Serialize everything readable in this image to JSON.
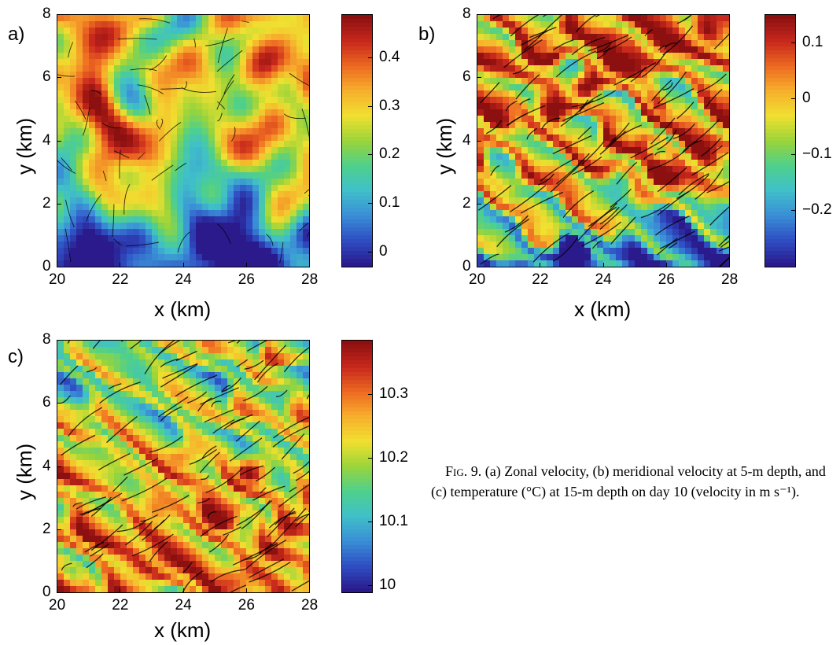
{
  "panels": [
    {
      "id": "a",
      "label": "a)",
      "xlabel": "x (km)",
      "ylabel": "y (km)",
      "xticks": [
        "20",
        "22",
        "24",
        "26",
        "28"
      ],
      "yticks": [
        "0",
        "2",
        "4",
        "6",
        "8"
      ],
      "colorbar_ticks": [
        "0.4",
        "0.3",
        "0.2",
        "0.1",
        "0"
      ],
      "colorbar_range": [
        -0.03,
        0.49
      ],
      "pattern": "zonal"
    },
    {
      "id": "b",
      "label": "b)",
      "xlabel": "x (km)",
      "ylabel": "y (km)",
      "xticks": [
        "20",
        "22",
        "24",
        "26",
        "28"
      ],
      "yticks": [
        "0",
        "2",
        "4",
        "6",
        "8"
      ],
      "colorbar_ticks": [
        "0.1",
        "0",
        "−0.1",
        "−0.2"
      ],
      "colorbar_range": [
        -0.3,
        0.15
      ],
      "pattern": "meridional"
    },
    {
      "id": "c",
      "label": "c)",
      "xlabel": "x (km)",
      "ylabel": "y (km)",
      "xticks": [
        "20",
        "22",
        "24",
        "26",
        "28"
      ],
      "yticks": [
        "0",
        "2",
        "4",
        "6",
        "8"
      ],
      "colorbar_ticks": [
        "10.3",
        "10.2",
        "10.1",
        "10"
      ],
      "colorbar_range": [
        9.99,
        10.385
      ],
      "pattern": "temperature"
    }
  ],
  "caption": {
    "fig_label": "Fig. 9.",
    "text": "(a) Zonal velocity, (b) meridional velocity at 5-m depth, and (c) temperature (°C) at 15-m depth on day 10 (velocity in m s⁻¹)."
  },
  "colormap": [
    "#2a1a8c",
    "#2f4fc4",
    "#3a8fd6",
    "#40c0c8",
    "#4fd08a",
    "#9ad43a",
    "#f0e030",
    "#f6b02c",
    "#ee6a22",
    "#c8281c",
    "#8c1010"
  ]
}
